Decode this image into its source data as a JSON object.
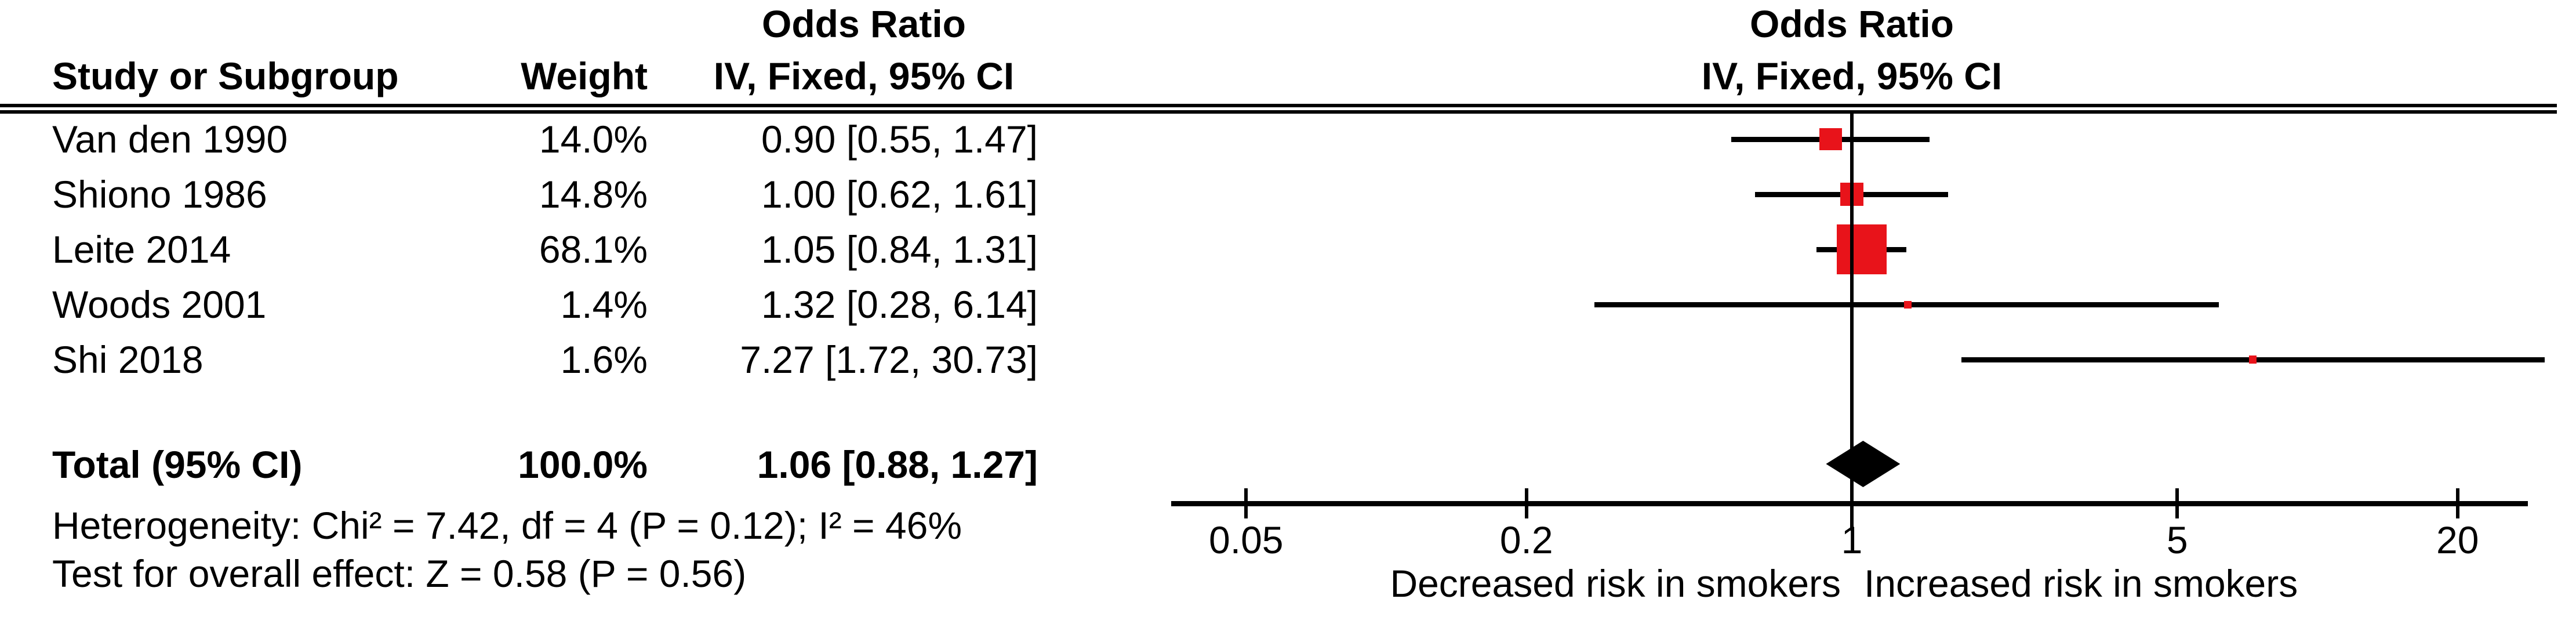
{
  "table": {
    "effect_title": "Odds Ratio",
    "columns": {
      "study": "Study or Subgroup",
      "weight": "Weight",
      "ci": "IV, Fixed, 95% CI"
    },
    "total_label": "Total (95% CI)",
    "heterogeneity_text": "Heterogeneity: Chi² = 7.42, df = 4 (P = 0.12); I² = 46%",
    "overall_effect_text": "Test for overall effect: Z = 0.58 (P = 0.56)"
  },
  "plot": {
    "effect_title": "Odds Ratio",
    "subtitle": "IV, Fixed, 95% CI",
    "left_label": "Decreased risk in smokers",
    "right_label": "Increased risk in smokers",
    "marker_color": "#e8131a",
    "diamond_color": "#000000"
  },
  "chart_data": {
    "type": "scatter",
    "variant": "forest-plot",
    "title": "Odds Ratio",
    "subtitle": "IV, Fixed, 95% CI",
    "x_scale": "log",
    "x_ticks": [
      "0.05",
      "0.2",
      "1",
      "5",
      "20"
    ],
    "xlim": [
      0.05,
      20
    ],
    "null_line": 1,
    "studies": [
      {
        "name": "Van den 1990",
        "weight_text": "14.0%",
        "weight": 14.0,
        "or": 0.9,
        "ci_low": 0.55,
        "ci_high": 1.47,
        "ci_text": "0.90 [0.55, 1.47]"
      },
      {
        "name": "Shiono 1986",
        "weight_text": "14.8%",
        "weight": 14.8,
        "or": 1.0,
        "ci_low": 0.62,
        "ci_high": 1.61,
        "ci_text": "1.00 [0.62, 1.61]"
      },
      {
        "name": "Leite 2014",
        "weight_text": "68.1%",
        "weight": 68.1,
        "or": 1.05,
        "ci_low": 0.84,
        "ci_high": 1.31,
        "ci_text": "1.05 [0.84, 1.31]"
      },
      {
        "name": "Woods 2001",
        "weight_text": "1.4%",
        "weight": 1.4,
        "or": 1.32,
        "ci_low": 0.28,
        "ci_high": 6.14,
        "ci_text": "1.32 [0.28, 6.14]"
      },
      {
        "name": "Shi 2018",
        "weight_text": "1.6%",
        "weight": 1.6,
        "or": 7.27,
        "ci_low": 1.72,
        "ci_high": 30.73,
        "ci_text": "7.27 [1.72, 30.73]"
      }
    ],
    "total": {
      "weight_text": "100.0%",
      "or": 1.06,
      "ci_low": 0.88,
      "ci_high": 1.27,
      "ci_text": "1.06 [0.88, 1.27]"
    },
    "heterogeneity": {
      "chi2": 7.42,
      "df": 4,
      "P": 0.12,
      "I2_pct": 46
    },
    "overall_effect": {
      "Z": 0.58,
      "P": 0.56
    },
    "x_axis_annotations": {
      "left": "Decreased risk in smokers",
      "right": "Increased risk in smokers"
    }
  }
}
